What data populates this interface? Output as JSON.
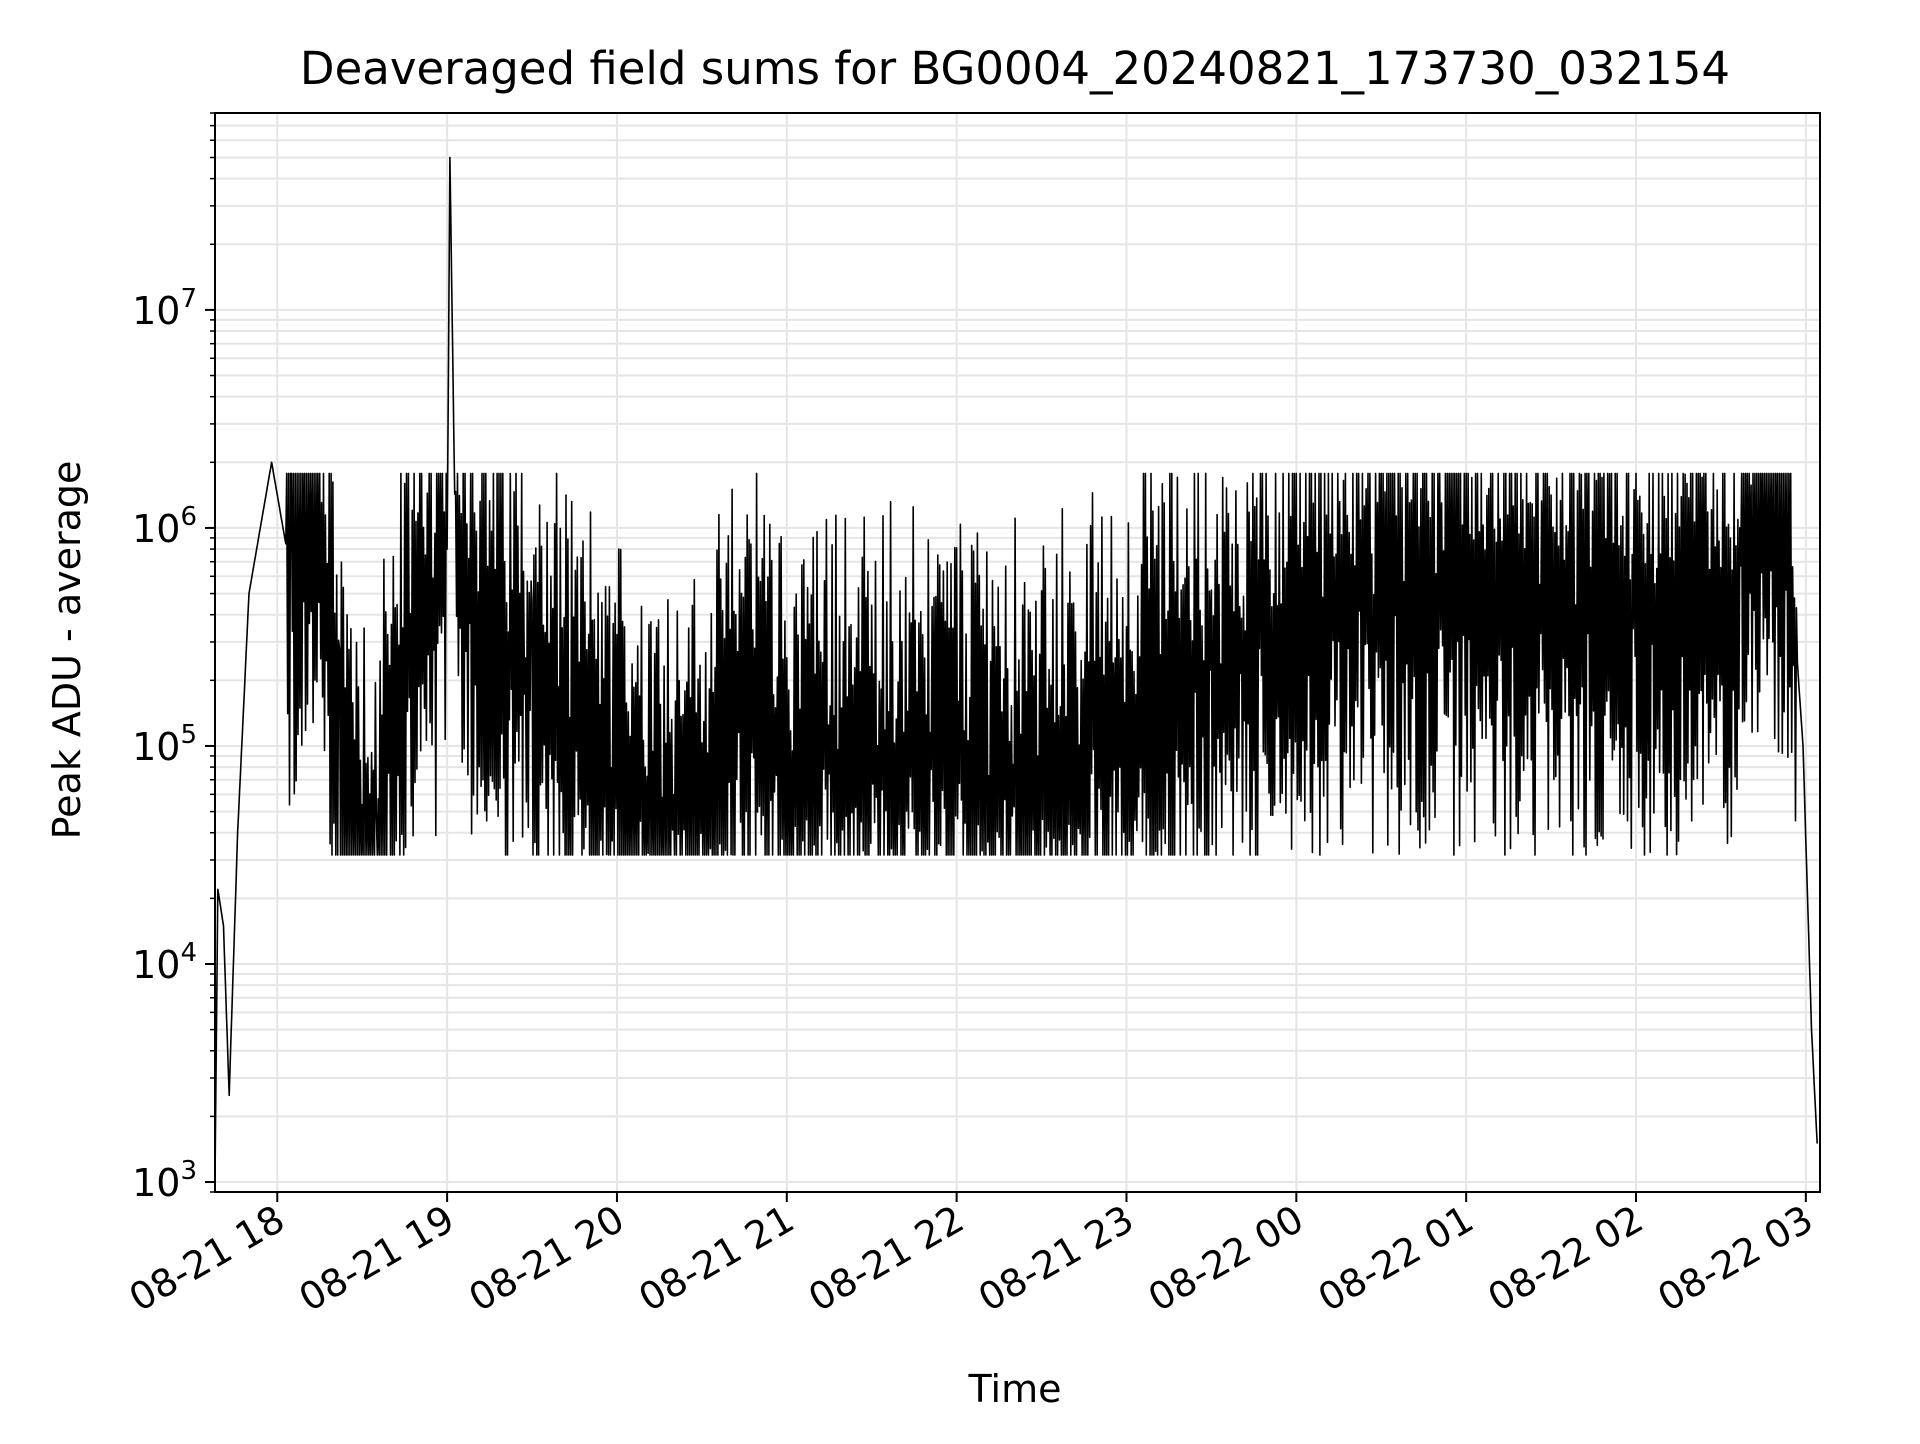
{
  "chart_data": {
    "type": "line",
    "title": "Deaveraged field sums for BG0004_20240821_173730_032154",
    "xlabel": "Time",
    "ylabel": "Peak ADU - average",
    "y_scale": "log",
    "ylim": [
      900,
      80000000
    ],
    "xlim": [
      "2024-08-21 17:38",
      "2024-08-22 03:05"
    ],
    "grid": true,
    "line_color": "#000000",
    "grid_color": "#e5e5e5",
    "x_ticks": [
      {
        "t": "2024-08-21 18:00",
        "label": "08-21 18"
      },
      {
        "t": "2024-08-21 19:00",
        "label": "08-21 19"
      },
      {
        "t": "2024-08-21 20:00",
        "label": "08-21 20"
      },
      {
        "t": "2024-08-21 21:00",
        "label": "08-21 21"
      },
      {
        "t": "2024-08-21 22:00",
        "label": "08-21 22"
      },
      {
        "t": "2024-08-21 23:00",
        "label": "08-21 23"
      },
      {
        "t": "2024-08-22 00:00",
        "label": "08-22 00"
      },
      {
        "t": "2024-08-22 01:00",
        "label": "08-22 01"
      },
      {
        "t": "2024-08-22 02:00",
        "label": "08-22 02"
      },
      {
        "t": "2024-08-22 03:00",
        "label": "08-22 03"
      }
    ],
    "y_ticks": [
      {
        "value": 1000,
        "base": "10",
        "exp": "3"
      },
      {
        "value": 10000,
        "base": "10",
        "exp": "4"
      },
      {
        "value": 100000,
        "base": "10",
        "exp": "5"
      },
      {
        "value": 1000000,
        "base": "10",
        "exp": "6"
      },
      {
        "value": 10000000,
        "base": "10",
        "exp": "7"
      }
    ],
    "series": [
      {
        "points": [
          [
            "2024-08-21 17:38",
            1000
          ],
          [
            "2024-08-21 17:39",
            22000
          ],
          [
            "2024-08-21 17:41",
            15000
          ],
          [
            "2024-08-21 17:43",
            2500
          ],
          [
            "2024-08-21 17:46",
            40000
          ],
          [
            "2024-08-21 17:50",
            500000
          ],
          [
            "2024-08-21 17:54",
            1000000
          ],
          [
            "2024-08-21 17:58",
            2000000
          ],
          [
            "2024-08-21 18:05",
            600000
          ],
          [
            "2024-08-21 18:15",
            1200000
          ],
          [
            "2024-08-21 18:22",
            100000
          ],
          [
            "2024-08-21 18:28",
            60000
          ],
          [
            "2024-08-21 18:35",
            30000
          ],
          [
            "2024-08-21 18:45",
            300000
          ],
          [
            "2024-08-21 19:00",
            800000
          ],
          [
            "2024-08-21 19:01",
            50000000
          ],
          [
            "2024-08-21 19:03",
            700000
          ],
          [
            "2024-08-21 19:30",
            200000
          ],
          [
            "2024-08-21 20:00",
            70000
          ],
          [
            "2024-08-21 20:30",
            60000
          ],
          [
            "2024-08-21 20:48",
            200000
          ],
          [
            "2024-08-21 21:00",
            90000
          ],
          [
            "2024-08-21 21:30",
            110000
          ],
          [
            "2024-08-21 22:00",
            100000
          ],
          [
            "2024-08-21 22:30",
            75000
          ],
          [
            "2024-08-21 23:00",
            150000
          ],
          [
            "2024-08-21 23:30",
            250000
          ],
          [
            "2024-08-22 00:00",
            400000
          ],
          [
            "2024-08-22 00:30",
            500000
          ],
          [
            "2024-08-22 01:00",
            450000
          ],
          [
            "2024-08-22 01:30",
            420000
          ],
          [
            "2024-08-22 02:00",
            380000
          ],
          [
            "2024-08-22 02:30",
            450000
          ],
          [
            "2024-08-22 02:46",
            2000000
          ],
          [
            "2024-08-22 02:54",
            900000
          ],
          [
            "2024-08-22 02:59",
            100000
          ],
          [
            "2024-08-22 03:02",
            5000
          ],
          [
            "2024-08-22 03:04",
            1500
          ]
        ]
      }
    ]
  }
}
